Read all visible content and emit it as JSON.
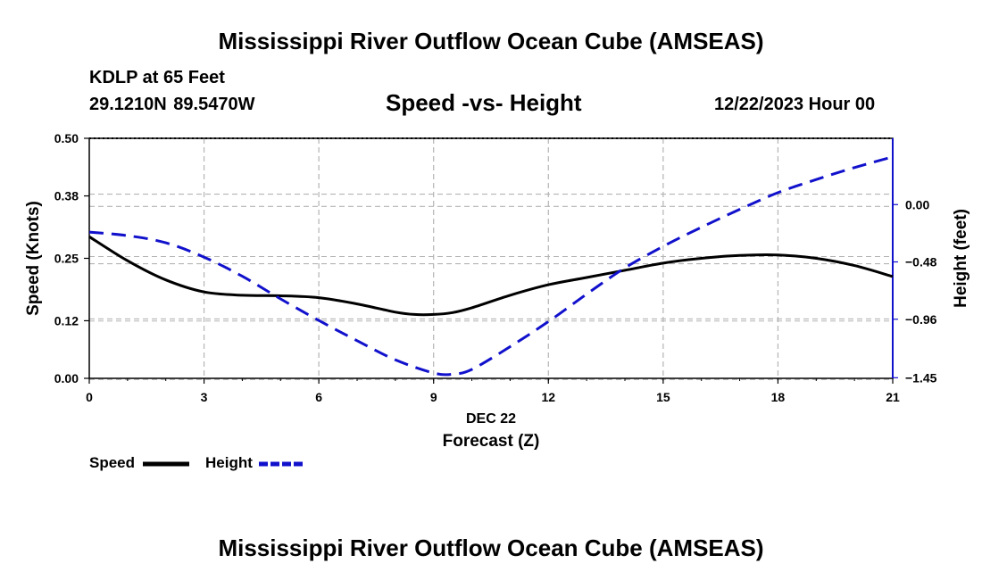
{
  "header": {
    "title": "Mississippi River Outflow Ocean Cube (AMSEAS)",
    "station": "KDLP at 65 Feet",
    "coords": "29.1210N  89.5470W",
    "subtitle": "Speed -vs- Height",
    "run": "12/22/2023 Hour 00"
  },
  "footer": {
    "title": "Mississippi River Outflow Ocean Cube (AMSEAS)"
  },
  "legend": {
    "speed": "Speed",
    "height": "Height"
  },
  "colors": {
    "speed": "#000000",
    "height": "#1111cc",
    "grid": "#b4b4b4"
  },
  "chart_data": {
    "type": "line",
    "title": "Speed -vs- Height",
    "xlabel": "Forecast (Z)",
    "xlabel_date": "DEC 22",
    "ylabel_left": "Speed (Knots)",
    "ylabel_right": "Height (feet)",
    "xlim": [
      0,
      21
    ],
    "x_ticks": [
      "0",
      "3",
      "6",
      "9",
      "12",
      "15",
      "18",
      "21"
    ],
    "ylim_left": [
      0,
      0.5
    ],
    "y_left_ticks": [
      "0.00",
      "0.12",
      "0.25",
      "0.38",
      "0.50"
    ],
    "ylim_right": [
      -1.455,
      0.555
    ],
    "y_right_ticks": [
      "−1.45",
      "−0.96",
      "−0.48",
      "0.00"
    ],
    "series": [
      {
        "name": "Speed",
        "axis": "left",
        "style": "solid",
        "x": [
          0,
          1,
          2,
          3,
          4,
          5,
          6,
          7,
          8,
          8.5,
          9,
          9.5,
          10,
          11,
          12,
          13,
          14,
          15,
          16,
          17,
          18,
          19,
          20,
          21
        ],
        "y": [
          0.295,
          0.245,
          0.205,
          0.18,
          0.173,
          0.172,
          0.168,
          0.155,
          0.138,
          0.133,
          0.133,
          0.137,
          0.147,
          0.173,
          0.195,
          0.21,
          0.225,
          0.24,
          0.25,
          0.256,
          0.257,
          0.25,
          0.235,
          0.212
        ]
      },
      {
        "name": "Height",
        "axis": "right",
        "style": "dashed",
        "x": [
          0,
          1,
          2,
          3,
          4,
          5,
          6,
          7,
          8,
          9,
          9.5,
          10,
          11,
          12,
          13,
          14,
          15,
          16,
          17,
          18,
          19,
          20,
          21
        ],
        "y": [
          -0.23,
          -0.26,
          -0.32,
          -0.44,
          -0.6,
          -0.79,
          -0.97,
          -1.14,
          -1.3,
          -1.41,
          -1.42,
          -1.38,
          -1.19,
          -0.98,
          -0.75,
          -0.53,
          -0.35,
          -0.19,
          -0.04,
          0.1,
          0.21,
          0.31,
          0.4
        ]
      }
    ]
  }
}
